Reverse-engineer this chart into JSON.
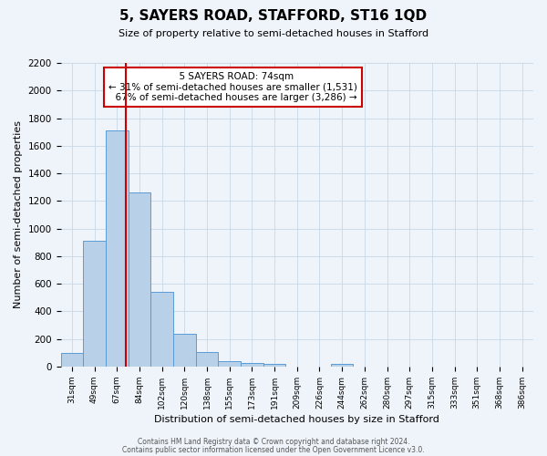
{
  "title": "5, SAYERS ROAD, STAFFORD, ST16 1QD",
  "subtitle": "Size of property relative to semi-detached houses in Stafford",
  "xlabel": "Distribution of semi-detached houses by size in Stafford",
  "ylabel": "Number of semi-detached properties",
  "bar_values": [
    100,
    910,
    1710,
    1260,
    540,
    235,
    105,
    40,
    25,
    20,
    0,
    0,
    20,
    0,
    0,
    0,
    0,
    0,
    0,
    0,
    0
  ],
  "bin_labels": [
    "31sqm",
    "49sqm",
    "67sqm",
    "84sqm",
    "102sqm",
    "120sqm",
    "138sqm",
    "155sqm",
    "173sqm",
    "191sqm",
    "209sqm",
    "226sqm",
    "244sqm",
    "262sqm",
    "280sqm",
    "297sqm",
    "315sqm",
    "333sqm",
    "351sqm",
    "368sqm",
    "386sqm"
  ],
  "bar_color": "#b8d0e8",
  "bar_edge_color": "#5b9bd5",
  "property_label": "5 SAYERS ROAD: 74sqm",
  "pct_smaller": 31,
  "pct_larger": 67,
  "n_smaller": 1531,
  "n_larger": 3286,
  "ylim": [
    0,
    2200
  ],
  "yticks": [
    0,
    200,
    400,
    600,
    800,
    1000,
    1200,
    1400,
    1600,
    1800,
    2000,
    2200
  ],
  "footer_line1": "Contains HM Land Registry data © Crown copyright and database right 2024.",
  "footer_line2": "Contains public sector information licensed under the Open Government Licence v3.0.",
  "annotation_box_color": "#ffffff",
  "annotation_box_edge": "#cc0000",
  "vline_color": "#cc0000",
  "grid_color": "#c8d8e8",
  "bg_color": "#eef4fa"
}
